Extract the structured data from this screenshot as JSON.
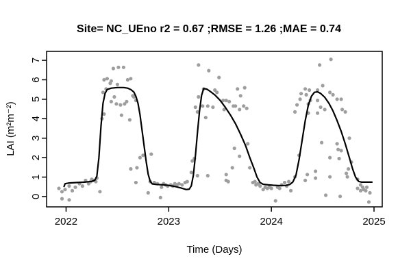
{
  "chart_data": {
    "type": "scatter",
    "title": "Site= NC_UEno r2 = 0.67 ;RMSE = 1.26 ;MAE = 0.74",
    "xlabel": "Time (Days)",
    "ylabel": "LAI (m²m⁻²)",
    "stats": {
      "site": "NC_UEno",
      "r2": 0.67,
      "rmse": 1.26,
      "mae": 0.74
    },
    "xlim": [
      2021.81,
      2025.08
    ],
    "ylim": [
      -0.53,
      7.46
    ],
    "x_ticks": [
      2022,
      2023,
      2024,
      2025
    ],
    "y_ticks": [
      0,
      1,
      2,
      3,
      4,
      5,
      6,
      7
    ],
    "grid": false,
    "legend": "none",
    "colors": {
      "points": "#9e9e9e",
      "line": "#000000",
      "axis": "#000000",
      "background": "#ffffff"
    },
    "series": [
      {
        "name": "observations",
        "type": "scatter",
        "points": [
          [
            2021.93,
            0.42
          ],
          [
            2021.96,
            0.25
          ],
          [
            2021.96,
            -0.11
          ],
          [
            2021.99,
            0.36
          ],
          [
            2022.03,
            0.54
          ],
          [
            2022.03,
            -0.17
          ],
          [
            2022.06,
            0.3
          ],
          [
            2022.09,
            0.48
          ],
          [
            2022.13,
            0.66
          ],
          [
            2022.16,
            0.54
          ],
          [
            2022.19,
            0.83
          ],
          [
            2022.22,
            0.66
          ],
          [
            2022.24,
            0.77
          ],
          [
            2022.25,
            0.89
          ],
          [
            2022.27,
            0.83
          ],
          [
            2022.29,
            0.77
          ],
          [
            2022.3,
            0.95
          ],
          [
            2022.33,
            0.25
          ],
          [
            2022.35,
            4.0
          ],
          [
            2022.36,
            5.35
          ],
          [
            2022.37,
            4.24
          ],
          [
            2022.37,
            6.0
          ],
          [
            2022.39,
            5.53
          ],
          [
            2022.4,
            6.06
          ],
          [
            2022.43,
            5.82
          ],
          [
            2022.44,
            4.88
          ],
          [
            2022.44,
            5.94
          ],
          [
            2022.46,
            6.58
          ],
          [
            2022.47,
            5.12
          ],
          [
            2022.49,
            4.76
          ],
          [
            2022.5,
            5.76
          ],
          [
            2022.51,
            6.64
          ],
          [
            2022.53,
            4.71
          ],
          [
            2022.54,
            4.18
          ],
          [
            2022.56,
            6.64
          ],
          [
            2022.57,
            4.76
          ],
          [
            2022.59,
            4.88
          ],
          [
            2022.6,
            6.0
          ],
          [
            2022.62,
            3.94
          ],
          [
            2022.63,
            6.06
          ],
          [
            2022.65,
            5.18
          ],
          [
            2022.66,
            5.12
          ],
          [
            2022.68,
            4.94
          ],
          [
            2022.63,
            1.42
          ],
          [
            2022.68,
            0.72
          ],
          [
            2022.69,
            1.48
          ],
          [
            2022.72,
            2.0
          ],
          [
            2022.75,
            2.12
          ],
          [
            2022.8,
            0.19
          ],
          [
            2022.82,
            0.77
          ],
          [
            2022.83,
            2.18
          ],
          [
            2022.86,
            0.72
          ],
          [
            2022.89,
            0.66
          ],
          [
            2022.92,
            -0.05
          ],
          [
            2022.93,
            0.48
          ],
          [
            2022.95,
            0.66
          ],
          [
            2022.97,
            0.6
          ],
          [
            2022.99,
            0.54
          ],
          [
            2023.02,
            0.6
          ],
          [
            2023.04,
            0.54
          ],
          [
            2023.06,
            0.66
          ],
          [
            2023.08,
            0.6
          ],
          [
            2023.1,
            0.66
          ],
          [
            2023.13,
            0.6
          ],
          [
            2023.16,
            0.72
          ],
          [
            2023.18,
            0.77
          ],
          [
            2023.22,
            1.24
          ],
          [
            2023.23,
            1.83
          ],
          [
            2023.25,
            1.95
          ],
          [
            2023.28,
            1.07
          ],
          [
            2023.26,
            4.59
          ],
          [
            2023.28,
            4.35
          ],
          [
            2023.29,
            6.76
          ],
          [
            2023.29,
            5.12
          ],
          [
            2023.33,
            4.65
          ],
          [
            2023.34,
            5.53
          ],
          [
            2023.36,
            4.06
          ],
          [
            2023.38,
            4.65
          ],
          [
            2023.38,
            1.07
          ],
          [
            2023.39,
            6.47
          ],
          [
            2023.43,
            4.59
          ],
          [
            2023.45,
            5.47
          ],
          [
            2023.47,
            5.35
          ],
          [
            2023.49,
            6.12
          ],
          [
            2023.53,
            4.94
          ],
          [
            2023.54,
            4.47
          ],
          [
            2023.56,
            4.94
          ],
          [
            2023.59,
            4.88
          ],
          [
            2023.63,
            4.65
          ],
          [
            2023.65,
            4.65
          ],
          [
            2023.67,
            5.53
          ],
          [
            2023.69,
            4.47
          ],
          [
            2023.7,
            5.18
          ],
          [
            2023.73,
            4.65
          ],
          [
            2023.74,
            5.59
          ],
          [
            2023.76,
            4.53
          ],
          [
            2023.56,
            1.13
          ],
          [
            2023.56,
            0.83
          ],
          [
            2023.58,
            0.77
          ],
          [
            2023.62,
            1.48
          ],
          [
            2023.64,
            2.48
          ],
          [
            2023.69,
            2.07
          ],
          [
            2023.77,
            2.71
          ],
          [
            2023.79,
            1.48
          ],
          [
            2023.82,
            0.72
          ],
          [
            2023.84,
            0.77
          ],
          [
            2023.85,
            0.6
          ],
          [
            2023.87,
            0.66
          ],
          [
            2023.89,
            0.54
          ],
          [
            2023.92,
            0.36
          ],
          [
            2023.94,
            0.48
          ],
          [
            2023.96,
            0.42
          ],
          [
            2023.98,
            0.48
          ],
          [
            2024.0,
            0.42
          ],
          [
            2024.04,
            -0.22
          ],
          [
            2024.06,
            0.48
          ],
          [
            2024.08,
            0.42
          ],
          [
            2024.1,
            0.6
          ],
          [
            2024.13,
            0.72
          ],
          [
            2024.15,
            0.54
          ],
          [
            2024.17,
            0.77
          ],
          [
            2024.19,
            0.3
          ],
          [
            2024.23,
            1.01
          ],
          [
            2024.27,
            2.12
          ],
          [
            2024.23,
            4.35
          ],
          [
            2024.25,
            4.71
          ],
          [
            2024.28,
            5.0
          ],
          [
            2024.29,
            5.29
          ],
          [
            2024.33,
            5.53
          ],
          [
            2024.33,
            0.83
          ],
          [
            2024.34,
            5.23
          ],
          [
            2024.35,
            1.13
          ],
          [
            2024.36,
            4.76
          ],
          [
            2024.36,
            4.29
          ],
          [
            2024.37,
            5.47
          ],
          [
            2024.38,
            4.94
          ],
          [
            2024.43,
            1.3
          ],
          [
            2024.43,
            0.95
          ],
          [
            2024.45,
            5.47
          ],
          [
            2024.45,
            4.94
          ],
          [
            2024.45,
            4.29
          ],
          [
            2024.47,
            6.76
          ],
          [
            2024.48,
            4.59
          ],
          [
            2024.49,
            2.77
          ],
          [
            2024.5,
            5.7
          ],
          [
            2024.52,
            4.47
          ],
          [
            2024.53,
            0.07
          ],
          [
            2024.57,
            5.35
          ],
          [
            2024.57,
            2.0
          ],
          [
            2024.57,
            1.01
          ],
          [
            2024.58,
            7.05
          ],
          [
            2024.6,
            5.23
          ],
          [
            2024.64,
            5.0
          ],
          [
            2024.64,
            2.71
          ],
          [
            2024.65,
            2.42
          ],
          [
            2024.66,
            1.95
          ],
          [
            2024.67,
            0.01
          ],
          [
            2024.68,
            5.0
          ],
          [
            2024.68,
            2.36
          ],
          [
            2024.69,
            4.47
          ],
          [
            2024.72,
            4.35
          ],
          [
            2024.73,
            1.19
          ],
          [
            2024.74,
            1.01
          ],
          [
            2024.75,
            1.42
          ],
          [
            2024.76,
            3.0
          ],
          [
            2024.78,
            1.77
          ],
          [
            2024.84,
            0.89
          ],
          [
            2024.84,
            0.42
          ],
          [
            2024.87,
            0.6
          ],
          [
            2024.87,
            0.3
          ],
          [
            2024.89,
            0.48
          ],
          [
            2024.9,
            0.36
          ],
          [
            2024.92,
            0.3
          ],
          [
            2024.93,
            0.48
          ],
          [
            2024.95,
            -0.28
          ],
          [
            2024.96,
            0.19
          ]
        ]
      },
      {
        "name": "model-fit",
        "type": "line",
        "points": [
          [
            2021.98,
            0.52
          ],
          [
            2021.99,
            0.66
          ],
          [
            2022.03,
            0.7
          ],
          [
            2022.1,
            0.72
          ],
          [
            2022.18,
            0.74
          ],
          [
            2022.25,
            0.78
          ],
          [
            2022.28,
            0.84
          ],
          [
            2022.3,
            1.05
          ],
          [
            2022.32,
            2.0
          ],
          [
            2022.34,
            3.6
          ],
          [
            2022.36,
            4.8
          ],
          [
            2022.38,
            5.3
          ],
          [
            2022.4,
            5.5
          ],
          [
            2022.44,
            5.57
          ],
          [
            2022.5,
            5.6
          ],
          [
            2022.56,
            5.6
          ],
          [
            2022.6,
            5.57
          ],
          [
            2022.63,
            5.5
          ],
          [
            2022.66,
            5.37
          ],
          [
            2022.68,
            5.15
          ],
          [
            2022.7,
            4.8
          ],
          [
            2022.72,
            4.2
          ],
          [
            2022.74,
            3.4
          ],
          [
            2022.76,
            2.6
          ],
          [
            2022.78,
            1.8
          ],
          [
            2022.8,
            1.15
          ],
          [
            2022.82,
            0.78
          ],
          [
            2022.84,
            0.65
          ],
          [
            2022.88,
            0.62
          ],
          [
            2022.95,
            0.6
          ],
          [
            2023.0,
            0.57
          ],
          [
            2023.06,
            0.52
          ],
          [
            2023.12,
            0.44
          ],
          [
            2023.17,
            0.36
          ],
          [
            2023.2,
            0.38
          ],
          [
            2023.22,
            0.55
          ],
          [
            2023.24,
            1.1
          ],
          [
            2023.26,
            2.1
          ],
          [
            2023.28,
            3.3
          ],
          [
            2023.3,
            4.4
          ],
          [
            2023.32,
            5.2
          ],
          [
            2023.34,
            5.55
          ],
          [
            2023.37,
            5.52
          ],
          [
            2023.4,
            5.42
          ],
          [
            2023.45,
            5.22
          ],
          [
            2023.5,
            4.95
          ],
          [
            2023.55,
            4.6
          ],
          [
            2023.6,
            4.2
          ],
          [
            2023.65,
            3.75
          ],
          [
            2023.7,
            3.2
          ],
          [
            2023.75,
            2.6
          ],
          [
            2023.79,
            2.0
          ],
          [
            2023.83,
            1.45
          ],
          [
            2023.86,
            1.0
          ],
          [
            2023.89,
            0.72
          ],
          [
            2023.92,
            0.63
          ],
          [
            2023.97,
            0.6
          ],
          [
            2024.02,
            0.58
          ],
          [
            2024.08,
            0.56
          ],
          [
            2024.14,
            0.57
          ],
          [
            2024.18,
            0.62
          ],
          [
            2024.21,
            0.75
          ],
          [
            2024.24,
            1.1
          ],
          [
            2024.27,
            1.9
          ],
          [
            2024.3,
            2.9
          ],
          [
            2024.33,
            3.9
          ],
          [
            2024.36,
            4.7
          ],
          [
            2024.39,
            5.15
          ],
          [
            2024.42,
            5.36
          ],
          [
            2024.45,
            5.38
          ],
          [
            2024.48,
            5.3
          ],
          [
            2024.52,
            5.1
          ],
          [
            2024.56,
            4.8
          ],
          [
            2024.6,
            4.4
          ],
          [
            2024.64,
            3.9
          ],
          [
            2024.68,
            3.35
          ],
          [
            2024.72,
            2.7
          ],
          [
            2024.76,
            2.0
          ],
          [
            2024.79,
            1.45
          ],
          [
            2024.82,
            1.0
          ],
          [
            2024.85,
            0.78
          ],
          [
            2024.88,
            0.74
          ],
          [
            2024.93,
            0.74
          ],
          [
            2024.98,
            0.74
          ]
        ]
      }
    ]
  }
}
